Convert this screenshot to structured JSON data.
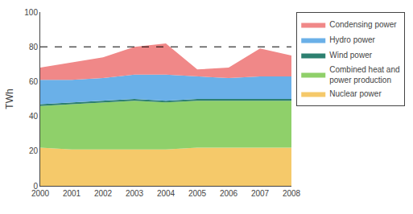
{
  "chart_data": {
    "type": "area",
    "stacked": true,
    "x": [
      2000,
      2001,
      2002,
      2003,
      2004,
      2005,
      2006,
      2007,
      2008
    ],
    "series": [
      {
        "name": "Nuclear power",
        "color": "#f5c96a",
        "values": [
          22,
          21,
          21,
          21,
          21,
          22,
          22,
          22,
          22
        ]
      },
      {
        "name": "Combined heat and\npower production",
        "color": "#8fd06a",
        "values": [
          24,
          26,
          27,
          28,
          27,
          27,
          27,
          27,
          27
        ]
      },
      {
        "name": "Wind power",
        "color": "#2d8070",
        "values": [
          1,
          1,
          1,
          1,
          1,
          1,
          1,
          1,
          1
        ]
      },
      {
        "name": "Hydro power",
        "color": "#6ab0e8",
        "values": [
          14,
          13,
          13,
          14,
          15,
          13,
          12,
          13,
          13
        ]
      },
      {
        "name": "Condensing power",
        "color": "#f08888",
        "values": [
          7,
          10,
          12,
          16,
          18,
          4,
          6,
          16,
          12
        ]
      }
    ],
    "ylabel": "TWh",
    "xlim": [
      2000,
      2008
    ],
    "xticks": [
      2000,
      2001,
      2002,
      2003,
      2004,
      2005,
      2006,
      2007,
      2008
    ],
    "ylim": [
      0,
      100
    ],
    "yticks": [
      0,
      20,
      40,
      60,
      80,
      100
    ],
    "hline_y": 80,
    "hline_style": {
      "color": "#000000",
      "line_style": "dashed"
    },
    "grid": false,
    "legend": "right"
  }
}
